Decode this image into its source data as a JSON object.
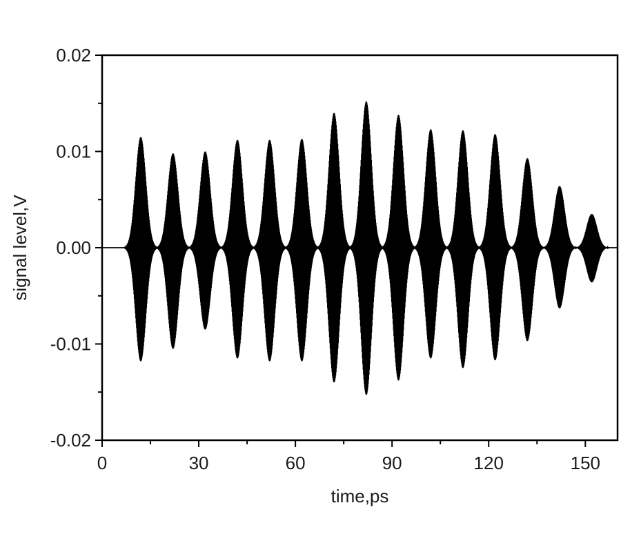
{
  "chart_data": {
    "type": "line",
    "title": "",
    "xlabel": "time,ps",
    "ylabel": "signal level,V",
    "xlim": [
      0,
      160
    ],
    "ylim": [
      -0.02,
      0.02
    ],
    "x_ticks": [
      0,
      30,
      60,
      90,
      120,
      150
    ],
    "x_tick_labels": [
      "0",
      "30",
      "60",
      "90",
      "120",
      "150"
    ],
    "y_ticks": [
      -0.02,
      -0.01,
      0.0,
      0.01,
      0.02
    ],
    "y_tick_labels": [
      "-0.02",
      "-0.01",
      "0.00",
      "0.01",
      "0.02"
    ],
    "grid": false,
    "legend": "none",
    "line_color": "#000000",
    "series": [
      {
        "pulses": [
          {
            "t": 12,
            "max": 0.0115,
            "min": -0.0118
          },
          {
            "t": 22,
            "max": 0.0098,
            "min": -0.0105
          },
          {
            "t": 32,
            "max": 0.01,
            "min": -0.0085
          },
          {
            "t": 42,
            "max": 0.0112,
            "min": -0.0115
          },
          {
            "t": 52,
            "max": 0.0112,
            "min": -0.0118
          },
          {
            "t": 62,
            "max": 0.0113,
            "min": -0.0118
          },
          {
            "t": 72,
            "max": 0.014,
            "min": -0.014
          },
          {
            "t": 82,
            "max": 0.0152,
            "min": -0.0153
          },
          {
            "t": 92,
            "max": 0.0138,
            "min": -0.0138
          },
          {
            "t": 102,
            "max": 0.0123,
            "min": -0.0115
          },
          {
            "t": 112,
            "max": 0.0122,
            "min": -0.0125
          },
          {
            "t": 122,
            "max": 0.0118,
            "min": -0.0117
          },
          {
            "t": 132,
            "max": 0.0093,
            "min": -0.0097
          },
          {
            "t": 142,
            "max": 0.0064,
            "min": -0.0063
          },
          {
            "t": 152,
            "max": 0.0035,
            "min": -0.0036
          }
        ]
      }
    ]
  }
}
